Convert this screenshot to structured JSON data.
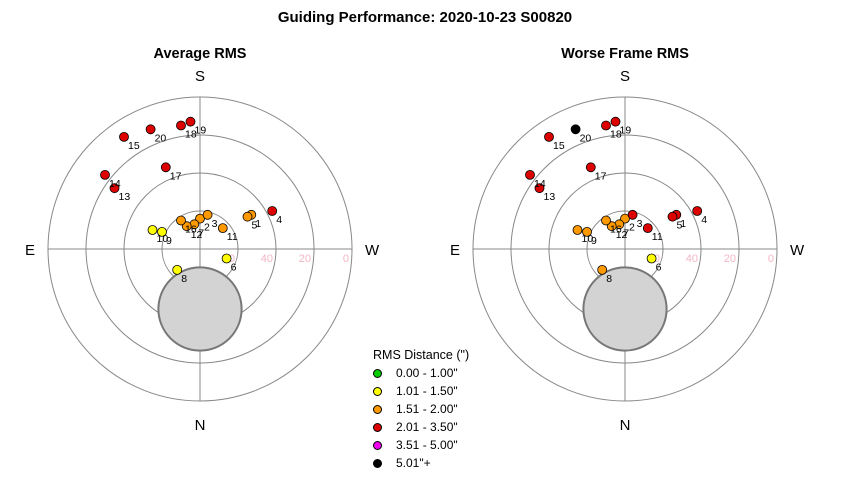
{
  "title": "Guiding Performance: 2020-10-23 S00820",
  "legend": {
    "title": "RMS Distance (\")",
    "items": [
      {
        "label": "0.00 - 1.00\"",
        "color": "#00cc00"
      },
      {
        "label": "1.01 - 1.50\"",
        "color": "#ffff00"
      },
      {
        "label": "1.51 - 2.00\"",
        "color": "#ff9900"
      },
      {
        "label": "2.01 - 3.50\"",
        "color": "#dd0000"
      },
      {
        "label": "3.51 - 5.00\"",
        "color": "#ee00ee"
      },
      {
        "label": "5.01\"+",
        "color": "#000000"
      }
    ]
  },
  "chart_data": [
    {
      "type": "scatter",
      "subtitle": "Average RMS",
      "coordinate_system": "polar (x = azimuth offset, y = altitude offset, in chart units)",
      "directions": {
        "top": "S",
        "bottom": "N",
        "left": "E",
        "right": "W"
      },
      "rings": [
        20,
        40,
        60,
        80
      ],
      "ring_labels": [
        "0",
        "20",
        "40",
        "60"
      ],
      "center_disc_radius": 26,
      "points": [
        {
          "label": "1",
          "x": 27,
          "y": 18,
          "color": "#ff9900"
        },
        {
          "label": "2",
          "x": 0,
          "y": 16,
          "color": "#ff9900"
        },
        {
          "label": "3",
          "x": 4,
          "y": 18,
          "color": "#ff9900"
        },
        {
          "label": "4",
          "x": 38,
          "y": 20,
          "color": "#dd0000"
        },
        {
          "label": "5",
          "x": 25,
          "y": 17,
          "color": "#ff9900"
        },
        {
          "label": "6",
          "x": 14,
          "y": -5,
          "color": "#ffff00"
        },
        {
          "label": "7",
          "x": -3,
          "y": 13,
          "color": "#ff9900"
        },
        {
          "label": "8",
          "x": -12,
          "y": -11,
          "color": "#ffff00"
        },
        {
          "label": "9",
          "x": -20,
          "y": 9,
          "color": "#ffff00"
        },
        {
          "label": "10",
          "x": -25,
          "y": 10,
          "color": "#ffff00"
        },
        {
          "label": "11",
          "x": 12,
          "y": 11,
          "color": "#ff9900"
        },
        {
          "label": "12",
          "x": -7,
          "y": 12,
          "color": "#ff9900"
        },
        {
          "label": "13",
          "x": -45,
          "y": 32,
          "color": "#dd0000"
        },
        {
          "label": "14",
          "x": -50,
          "y": 39,
          "color": "#dd0000"
        },
        {
          "label": "15",
          "x": -40,
          "y": 59,
          "color": "#dd0000"
        },
        {
          "label": "16",
          "x": -10,
          "y": 15,
          "color": "#ff9900"
        },
        {
          "label": "17",
          "x": -18,
          "y": 43,
          "color": "#dd0000"
        },
        {
          "label": "18",
          "x": -10,
          "y": 65,
          "color": "#dd0000"
        },
        {
          "label": "19",
          "x": -5,
          "y": 67,
          "color": "#dd0000"
        },
        {
          "label": "20",
          "x": -26,
          "y": 63,
          "color": "#dd0000"
        }
      ]
    },
    {
      "type": "scatter",
      "subtitle": "Worse Frame RMS",
      "coordinate_system": "polar (x = azimuth offset, y = altitude offset, in chart units)",
      "directions": {
        "top": "S",
        "bottom": "N",
        "left": "E",
        "right": "W"
      },
      "rings": [
        20,
        40,
        60,
        80
      ],
      "ring_labels": [
        "0",
        "20",
        "40",
        "60"
      ],
      "center_disc_radius": 26,
      "points": [
        {
          "label": "1",
          "x": 27,
          "y": 18,
          "color": "#dd0000"
        },
        {
          "label": "2",
          "x": 0,
          "y": 16,
          "color": "#ff9900"
        },
        {
          "label": "3",
          "x": 4,
          "y": 18,
          "color": "#dd0000"
        },
        {
          "label": "4",
          "x": 38,
          "y": 20,
          "color": "#dd0000"
        },
        {
          "label": "5",
          "x": 25,
          "y": 17,
          "color": "#dd0000"
        },
        {
          "label": "6",
          "x": 14,
          "y": -5,
          "color": "#ffff00"
        },
        {
          "label": "7",
          "x": -3,
          "y": 13,
          "color": "#ff9900"
        },
        {
          "label": "8",
          "x": -12,
          "y": -11,
          "color": "#ff9900"
        },
        {
          "label": "9",
          "x": -20,
          "y": 9,
          "color": "#ff9900"
        },
        {
          "label": "10",
          "x": -25,
          "y": 10,
          "color": "#ff9900"
        },
        {
          "label": "11",
          "x": 12,
          "y": 11,
          "color": "#dd0000"
        },
        {
          "label": "12",
          "x": -7,
          "y": 12,
          "color": "#ff9900"
        },
        {
          "label": "13",
          "x": -45,
          "y": 32,
          "color": "#dd0000"
        },
        {
          "label": "14",
          "x": -50,
          "y": 39,
          "color": "#dd0000"
        },
        {
          "label": "15",
          "x": -40,
          "y": 59,
          "color": "#dd0000"
        },
        {
          "label": "16",
          "x": -10,
          "y": 15,
          "color": "#ff9900"
        },
        {
          "label": "17",
          "x": -18,
          "y": 43,
          "color": "#dd0000"
        },
        {
          "label": "18",
          "x": -10,
          "y": 65,
          "color": "#dd0000"
        },
        {
          "label": "19",
          "x": -5,
          "y": 67,
          "color": "#dd0000"
        },
        {
          "label": "20",
          "x": -26,
          "y": 63,
          "color": "#000000"
        }
      ]
    }
  ]
}
